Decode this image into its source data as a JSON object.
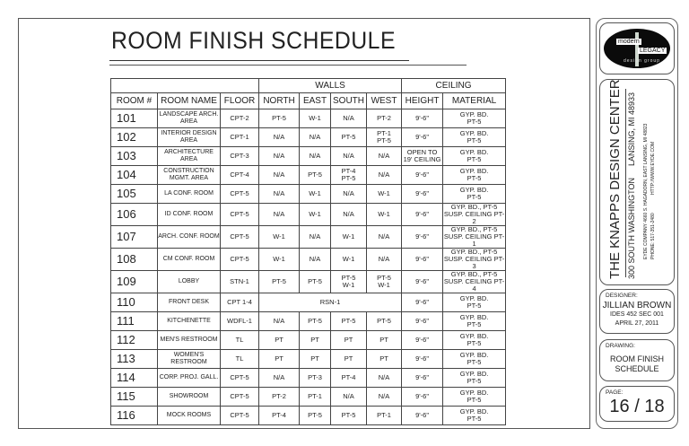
{
  "title": "ROOM FINISH SCHEDULE",
  "table": {
    "group_headers": {
      "walls": "WALLS",
      "ceiling": "CEILING"
    },
    "columns": [
      "ROOM #",
      "ROOM NAME",
      "FLOOR",
      "NORTH",
      "EAST",
      "SOUTH",
      "WEST",
      "HEIGHT",
      "MATERIAL"
    ],
    "rows": [
      {
        "room": "101",
        "name": "LANDSCAPE ARCH.\nAREA",
        "floor": "CPT-2",
        "north": "PT-5",
        "east": "W-1",
        "south": "N/A",
        "west": "PT-2",
        "height": "9'-6\"",
        "material": "GYP. BD.\nPT-5"
      },
      {
        "room": "102",
        "name": "INTERIOR DESIGN\nAREA",
        "floor": "CPT-1",
        "north": "N/A",
        "east": "N/A",
        "south": "PT-5",
        "west": "PT-1\nPT-5",
        "height": "9'-6\"",
        "material": "GYP. BD.\nPT-5"
      },
      {
        "room": "103",
        "name": "ARCHITECTURE\nAREA",
        "floor": "CPT-3",
        "north": "N/A",
        "east": "N/A",
        "south": "N/A",
        "west": "N/A",
        "height": "OPEN TO\n19' CEILING",
        "material": "GYP. BD.\nPT-5"
      },
      {
        "room": "104",
        "name": "CONSTRUCTION\nMGMT. AREA",
        "floor": "CPT-4",
        "north": "N/A",
        "east": "PT-5",
        "south": "PT-4\nPT-5",
        "west": "N/A",
        "height": "9'-6\"",
        "material": "GYP. BD.\nPT-5"
      },
      {
        "room": "105",
        "name": "LA CONF. ROOM",
        "floor": "CPT-5",
        "north": "N/A",
        "east": "W-1",
        "south": "N/A",
        "west": "W-1",
        "height": "9'-6\"",
        "material": "GYP. BD.\nPT-5"
      },
      {
        "room": "106",
        "name": "ID CONF. ROOM",
        "floor": "CPT-5",
        "north": "N/A",
        "east": "W-1",
        "south": "N/A",
        "west": "W-1",
        "height": "9'-6\"",
        "material": "GYP. BD., PT-5\nSUSP. CEILING PT-2"
      },
      {
        "room": "107",
        "name": "ARCH. CONF. ROOM",
        "floor": "CPT-5",
        "north": "W-1",
        "east": "N/A",
        "south": "W-1",
        "west": "N/A",
        "height": "9'-6\"",
        "material": "GYP. BD., PT-5\nSUSP. CEILING PT-1"
      },
      {
        "room": "108",
        "name": "CM CONF. ROOM",
        "floor": "CPT-5",
        "north": "W-1",
        "east": "N/A",
        "south": "W-1",
        "west": "N/A",
        "height": "9'-6\"",
        "material": "GYP. BD., PT-5\nSUSP. CEILING PT-3"
      },
      {
        "room": "109",
        "name": "LOBBY",
        "floor": "STN-1",
        "north": "PT-5",
        "east": "PT-5",
        "south": "PT-5\nW-1",
        "west": "PT-5\nW-1",
        "height": "9'-6\"",
        "material": "GYP. BD., PT-5\nSUSP. CEILING PT-4"
      },
      {
        "room": "110",
        "name": "FRONT DESK",
        "floor": "CPT 1-4",
        "walls_merged": "RSN-1",
        "height": "9'-6\"",
        "material": "GYP. BD.\nPT-5"
      },
      {
        "room": "111",
        "name": "KITCHENETTE",
        "floor": "WDFL-1",
        "north": "N/A",
        "east": "PT-5",
        "south": "PT-5",
        "west": "PT-5",
        "height": "9'-6\"",
        "material": "GYP. BD.\nPT-5"
      },
      {
        "room": "112",
        "name": "MEN'S RESTROOM",
        "floor": "TL",
        "north": "PT",
        "east": "PT",
        "south": "PT",
        "west": "PT",
        "height": "9'-6\"",
        "material": "GYP. BD.\nPT-5"
      },
      {
        "room": "113",
        "name": "WOMEN'S RESTROOM",
        "floor": "TL",
        "north": "PT",
        "east": "PT",
        "south": "PT",
        "west": "PT",
        "height": "9'-6\"",
        "material": "GYP. BD.\nPT-5"
      },
      {
        "room": "114",
        "name": "CORP. PROJ. GALL.",
        "floor": "CPT-5",
        "north": "N/A",
        "east": "PT-3",
        "south": "PT-4",
        "west": "N/A",
        "height": "9'-6\"",
        "material": "GYP. BD.\nPT-5"
      },
      {
        "room": "115",
        "name": "SHOWROOM",
        "floor": "CPT-5",
        "north": "PT-2",
        "east": "PT-1",
        "south": "N/A",
        "west": "N/A",
        "height": "9'-6\"",
        "material": "GYP. BD.\nPT-5"
      },
      {
        "room": "116",
        "name": "MOCK ROOMS",
        "floor": "CPT-5",
        "north": "PT-4",
        "east": "PT-5",
        "south": "PT-5",
        "west": "PT-1",
        "height": "9'-6\"",
        "material": "GYP. BD.\nPT-5"
      }
    ]
  },
  "title_block": {
    "logo": {
      "top": "modern",
      "bottom": "LEGACY",
      "sub": "design group"
    },
    "project": {
      "name": "THE KNAPPS DESIGN CENTER",
      "address": "300 SOUTH WASHINGTON",
      "city": "LANSING, MI  48933",
      "firm_line": "EYDE COMPANY 4660 S. HAGADORN, EAST LANSING, MI 48823",
      "phone": "PHONE: 517-351-2480",
      "web": "HTTP://WWW.EYDE.COM"
    },
    "designer": {
      "label": "DESIGNER:",
      "name": "JILLIAN BROWN",
      "course": "IDES 452  SEC 001",
      "date": "APRIL 27, 2011"
    },
    "drawing": {
      "label": "DRAWING:",
      "line1": "ROOM FINISH",
      "line2": "SCHEDULE"
    },
    "page": {
      "label": "PAGE:",
      "value": "16 / 18"
    }
  }
}
